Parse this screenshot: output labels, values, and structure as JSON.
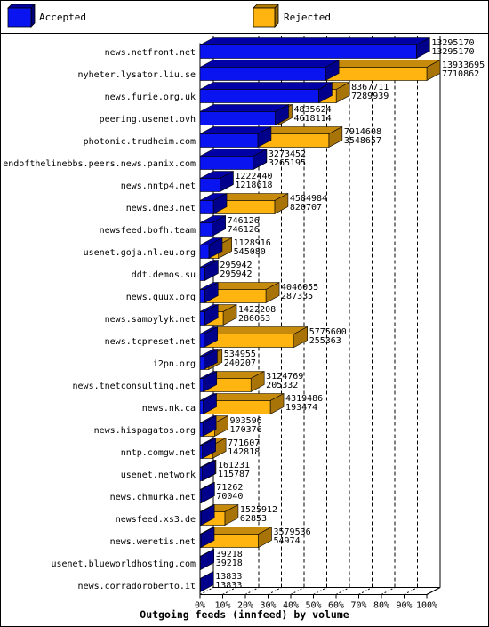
{
  "chart_data": {
    "type": "bar",
    "orientation": "horizontal",
    "stacked": true,
    "title": "Outgoing feeds (innfeed) by volume",
    "legend_position": "top",
    "grid": true,
    "xlim": [
      0,
      100
    ],
    "x_unit": "%",
    "ticks": [
      "0%",
      "10%",
      "20%",
      "30%",
      "40%",
      "50%",
      "60%",
      "70%",
      "80%",
      "90%",
      "100%"
    ],
    "series": [
      {
        "name": "Accepted",
        "color": "#0a14f0"
      },
      {
        "name": "Rejected",
        "color": "#ffb40f"
      }
    ],
    "categories": [
      "news.netfront.net",
      "nyheter.lysator.liu.se",
      "news.furie.org.uk",
      "peering.usenet.ovh",
      "photonic.trudheim.com",
      "endofthelinebbs.peers.news.panix.com",
      "news.nntp4.net",
      "news.dne3.net",
      "newsfeed.bofh.team",
      "usenet.goja.nl.eu.org",
      "ddt.demos.su",
      "news.quux.org",
      "news.samoylyk.net",
      "news.tcpreset.net",
      "i2pn.org",
      "news.tnetconsulting.net",
      "news.nk.ca",
      "news.hispagatos.org",
      "nntp.comgw.net",
      "usenet.network",
      "news.chmurka.net",
      "newsfeed.xs3.de",
      "news.weretis.net",
      "usenet.blueworldhosting.com",
      "news.corradoroberto.it"
    ],
    "offered": [
      13295170,
      13933695,
      8367711,
      4835624,
      7914608,
      3273452,
      1222440,
      4584984,
      746126,
      1128916,
      295942,
      4046055,
      1422208,
      5775600,
      534955,
      3124769,
      4319486,
      903596,
      771607,
      161231,
      71262,
      1525912,
      3579536,
      39218,
      13833
    ],
    "accepted": [
      13295170,
      7710862,
      7289939,
      4618114,
      3548657,
      3265195,
      1218618,
      820707,
      746126,
      545080,
      295942,
      287335,
      286063,
      255363,
      240207,
      205332,
      193474,
      170376,
      142818,
      115787,
      70040,
      62853,
      54974,
      39218,
      13833
    ]
  }
}
